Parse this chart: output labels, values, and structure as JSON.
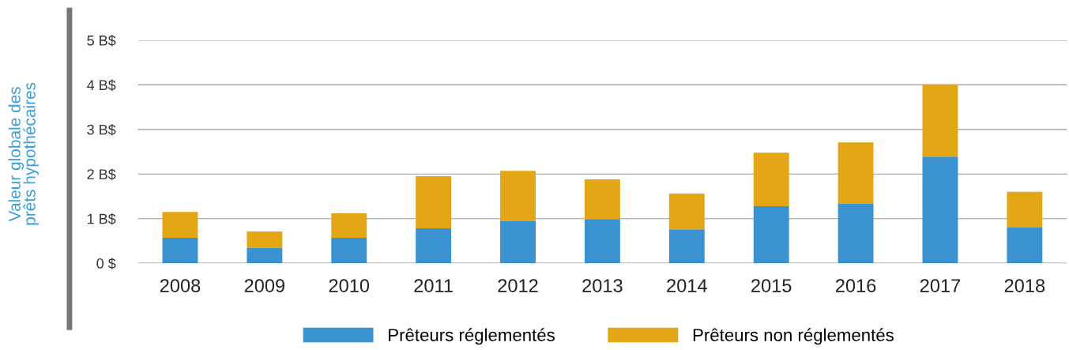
{
  "chart_data": {
    "type": "bar",
    "stacked": true,
    "ylabel": "Valeur globale des\nprêts hypothécaires",
    "categories": [
      "2008",
      "2009",
      "2010",
      "2011",
      "2012",
      "2013",
      "2014",
      "2015",
      "2016",
      "2017",
      "2018"
    ],
    "series": [
      {
        "name": "Prêteurs réglementés",
        "color": "#3a93d0",
        "values": [
          0.57,
          0.34,
          0.57,
          0.78,
          0.94,
          0.99,
          0.76,
          1.28,
          1.33,
          2.39,
          0.8
        ]
      },
      {
        "name": "Prêteurs non réglementés",
        "color": "#e3a614",
        "values": [
          0.58,
          0.37,
          0.55,
          1.17,
          1.13,
          0.89,
          0.8,
          1.2,
          1.38,
          1.62,
          0.8
        ]
      }
    ],
    "ylim": [
      0,
      5
    ],
    "yticks": [
      {
        "value": 0,
        "label": "0 $"
      },
      {
        "value": 1,
        "label": "1 B$"
      },
      {
        "value": 2,
        "label": "2 B$"
      },
      {
        "value": 3,
        "label": "3 B$"
      },
      {
        "value": 4,
        "label": "4 B$"
      },
      {
        "value": 5,
        "label": "5 B$"
      }
    ],
    "grid": "y",
    "legend": "bottom"
  }
}
